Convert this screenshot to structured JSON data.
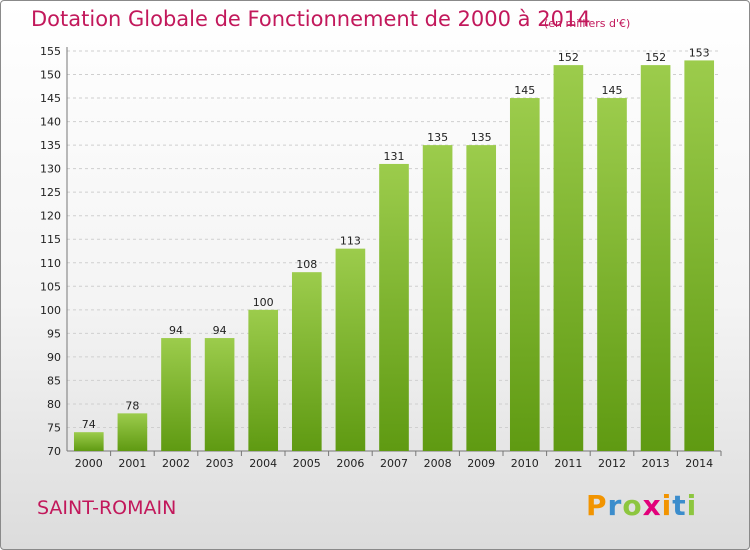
{
  "header": {
    "title": "Dotation Globale de Fonctionnement de 2000 à 2014",
    "unit": "(en milliers d'€)"
  },
  "footer": {
    "commune": "SAINT-ROMAIN",
    "logo_letters": [
      {
        "char": "P",
        "color": "#f29400"
      },
      {
        "char": "r",
        "color": "#3c8dcc"
      },
      {
        "char": "o",
        "color": "#8dc63f"
      },
      {
        "char": "x",
        "color": "#e2007a"
      },
      {
        "char": "i",
        "color": "#f29400"
      },
      {
        "char": "t",
        "color": "#3c8dcc"
      },
      {
        "char": "i",
        "color": "#8dc63f"
      }
    ]
  },
  "colors": {
    "accent": "#c2185b",
    "bar_top": "#9ccc4c",
    "bar_bottom": "#5f9a12",
    "grid": "#cfcfcf"
  },
  "chart_data": {
    "type": "bar",
    "categories": [
      "2000",
      "2001",
      "2002",
      "2003",
      "2004",
      "2005",
      "2006",
      "2007",
      "2008",
      "2009",
      "2010",
      "2011",
      "2012",
      "2013",
      "2014"
    ],
    "values": [
      74,
      78,
      94,
      94,
      100,
      108,
      113,
      131,
      135,
      135,
      145,
      152,
      145,
      152,
      153
    ],
    "data_labels": [
      "74",
      "78",
      "94",
      "94",
      "100",
      "108",
      "113",
      "131",
      "135",
      "135",
      "145",
      "152",
      "145",
      "152",
      "153"
    ],
    "title": "Dotation Globale de Fonctionnement de 2000 à 2014",
    "ylim": [
      70,
      155
    ],
    "yticks": [
      70,
      75,
      80,
      85,
      90,
      95,
      100,
      105,
      110,
      115,
      120,
      125,
      130,
      135,
      140,
      145,
      150,
      155
    ],
    "ytick_labels": [
      "70",
      "75",
      "80",
      "85",
      "90",
      "95",
      "100",
      "105",
      "110",
      "115",
      "120",
      "125",
      "130",
      "135",
      "140",
      "145",
      "150",
      "155"
    ],
    "grid": true,
    "legend": "none"
  }
}
